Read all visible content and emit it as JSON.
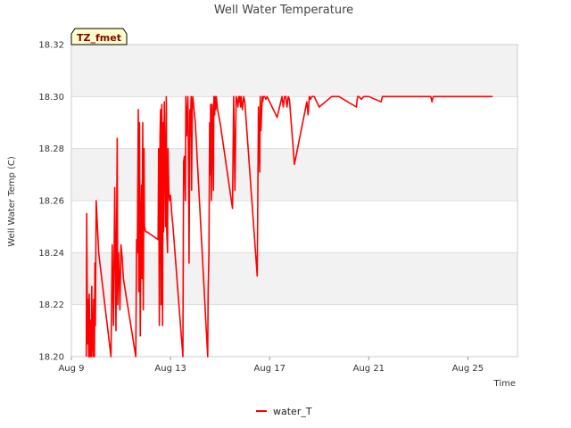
{
  "chart_data": {
    "type": "line",
    "title": "Well Water Temperature",
    "xlabel": "Time",
    "ylabel": "Well Water Temp (C)",
    "badge": "TZ_fmet",
    "x_unit": "days since Aug 9",
    "xlim": [
      0,
      18
    ],
    "ylim": [
      18.2,
      18.32
    ],
    "y_ticks": [
      18.2,
      18.22,
      18.24,
      18.26,
      18.28,
      18.3,
      18.32
    ],
    "y_tick_labels": [
      "18.20",
      "18.22",
      "18.24",
      "18.26",
      "18.28",
      "18.30",
      "18.32"
    ],
    "x_ticks": [
      0,
      4,
      8,
      12,
      16
    ],
    "x_tick_labels": [
      "Aug 9",
      "Aug 13",
      "Aug 17",
      "Aug 21",
      "Aug 25"
    ],
    "grid": "horizontal bands",
    "legend_position": "bottom-center",
    "series": [
      {
        "name": "water_T",
        "color": "#ff0000",
        "x": [
          0.6,
          0.62,
          0.65,
          0.67,
          0.7,
          0.72,
          0.75,
          0.77,
          0.8,
          0.82,
          0.85,
          0.87,
          0.9,
          0.93,
          0.95,
          0.97,
          1.0,
          1.05,
          1.1,
          1.6,
          1.65,
          1.7,
          1.75,
          1.8,
          1.82,
          1.85,
          1.87,
          1.9,
          1.93,
          1.96,
          2.0,
          2.05,
          2.1,
          2.6,
          2.63,
          2.66,
          2.7,
          2.72,
          2.75,
          2.78,
          2.8,
          2.83,
          2.85,
          2.88,
          2.9,
          2.93,
          2.95,
          3.0,
          3.05,
          3.5,
          3.52,
          3.55,
          3.58,
          3.6,
          3.62,
          3.65,
          3.68,
          3.7,
          3.72,
          3.75,
          3.78,
          3.8,
          3.83,
          3.85,
          3.88,
          3.9,
          3.93,
          3.96,
          4.0,
          4.05,
          4.1,
          4.5,
          4.53,
          4.56,
          4.6,
          4.62,
          4.65,
          4.68,
          4.7,
          4.73,
          4.75,
          4.78,
          4.8,
          4.83,
          4.85,
          4.88,
          4.9,
          5.0,
          5.5,
          5.52,
          5.55,
          5.58,
          5.6,
          5.62,
          5.65,
          5.68,
          5.7,
          5.73,
          5.75,
          5.78,
          5.8,
          5.83,
          5.85,
          5.88,
          5.9,
          6.0,
          6.5,
          6.55,
          6.6,
          6.65,
          6.7,
          6.72,
          6.75,
          6.78,
          6.8,
          6.83,
          6.85,
          6.9,
          6.95,
          7.0,
          7.5,
          7.55,
          7.6,
          7.62,
          7.65,
          7.7,
          7.72,
          7.75,
          7.8,
          7.85,
          7.9,
          8.0,
          8.1,
          8.2,
          8.3,
          8.5,
          8.55,
          8.6,
          8.65,
          8.7,
          8.75,
          8.8,
          9.0,
          9.5,
          9.55,
          9.6,
          9.65,
          9.7,
          9.75,
          9.8,
          10.0,
          10.5,
          10.55,
          10.6,
          10.7,
          10.8,
          11.5,
          11.55,
          11.6,
          11.7,
          11.8,
          12.0,
          12.5,
          12.55,
          12.6,
          13.0,
          13.5,
          14.0,
          14.5,
          14.55,
          14.6,
          15.0,
          16.0,
          17.0
        ],
        "y": [
          18.2,
          18.255,
          18.205,
          18.222,
          18.2,
          18.224,
          18.2,
          18.214,
          18.2,
          18.227,
          18.205,
          18.2,
          18.222,
          18.2,
          18.236,
          18.212,
          18.26,
          18.25,
          18.24,
          18.2,
          18.243,
          18.212,
          18.265,
          18.21,
          18.245,
          18.284,
          18.22,
          18.24,
          18.232,
          18.218,
          18.243,
          18.238,
          18.23,
          18.2,
          18.245,
          18.24,
          18.295,
          18.225,
          18.29,
          18.208,
          18.245,
          18.266,
          18.23,
          18.29,
          18.218,
          18.28,
          18.25,
          18.248,
          18.248,
          18.245,
          18.28,
          18.212,
          18.285,
          18.295,
          18.22,
          18.297,
          18.212,
          18.29,
          18.248,
          18.298,
          18.27,
          18.25,
          18.3,
          18.248,
          18.24,
          18.28,
          18.264,
          18.26,
          18.262,
          18.255,
          18.25,
          18.2,
          18.275,
          18.277,
          18.26,
          18.3,
          18.285,
          18.294,
          18.3,
          18.27,
          18.236,
          18.295,
          18.285,
          18.3,
          18.264,
          18.298,
          18.3,
          18.29,
          18.2,
          18.225,
          18.24,
          18.29,
          18.27,
          18.297,
          18.26,
          18.297,
          18.287,
          18.264,
          18.3,
          18.293,
          18.3,
          18.295,
          18.3,
          18.297,
          18.295,
          18.29,
          18.257,
          18.3,
          18.264,
          18.3,
          18.298,
          18.296,
          18.3,
          18.298,
          18.3,
          18.296,
          18.3,
          18.295,
          18.3,
          18.298,
          18.231,
          18.296,
          18.271,
          18.3,
          18.287,
          18.3,
          18.298,
          18.3,
          18.3,
          18.299,
          18.3,
          18.298,
          18.296,
          18.294,
          18.292,
          18.3,
          18.296,
          18.3,
          18.3,
          18.296,
          18.3,
          18.299,
          18.274,
          18.298,
          18.293,
          18.3,
          18.299,
          18.3,
          18.3,
          18.3,
          18.296,
          18.3,
          18.3,
          18.3,
          18.3,
          18.3,
          18.296,
          18.3,
          18.3,
          18.299,
          18.3,
          18.3,
          18.298,
          18.3,
          18.3,
          18.3,
          18.3,
          18.3,
          18.3,
          18.298,
          18.3,
          18.3,
          18.3,
          18.3
        ]
      }
    ]
  }
}
